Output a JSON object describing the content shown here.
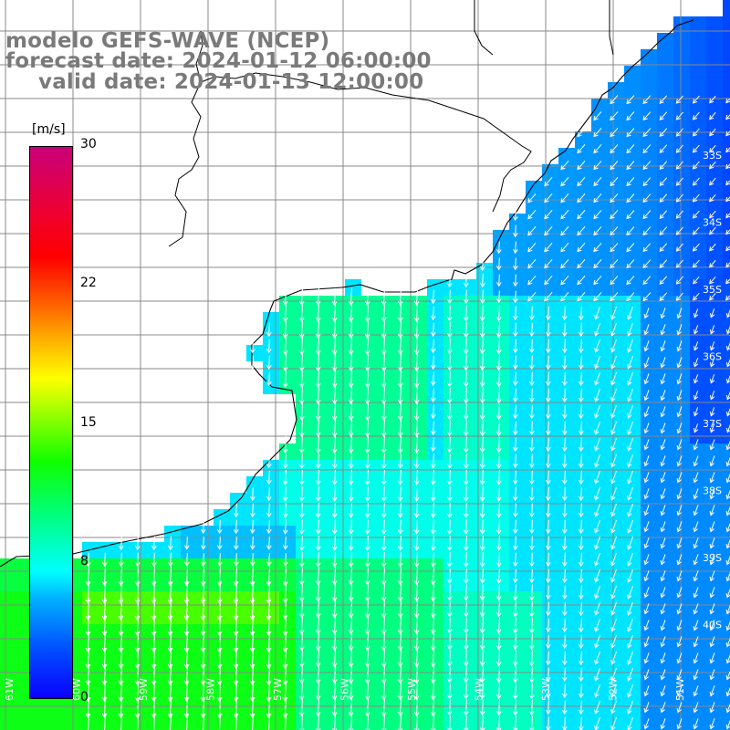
{
  "title": {
    "model": "modelo GEFS-WAVE (NCEP)",
    "forecast": "forecast date: 2024-01-12 06:00:00",
    "valid": "valid date: 2024-01-13 12:00:00"
  },
  "colorbar": {
    "unit": "[m/s]",
    "ticks": [
      "30",
      "22",
      "15",
      "8",
      "0"
    ]
  },
  "lat_labels": [
    "33S",
    "34S",
    "35S",
    "36S",
    "37S",
    "38S",
    "39S",
    "40S"
  ],
  "lon_labels": [
    "61W",
    "60W",
    "59W",
    "58W",
    "57W",
    "56W",
    "55W",
    "54W",
    "53W",
    "52W",
    "51W"
  ],
  "colors": {
    "background": "#ffffff",
    "grid": "#888888",
    "coast": "#000000",
    "title_text": "#7a7a7a",
    "arrow": "#ffffff"
  },
  "icons": {
    "arrow": "wind-vector-arrow"
  }
}
